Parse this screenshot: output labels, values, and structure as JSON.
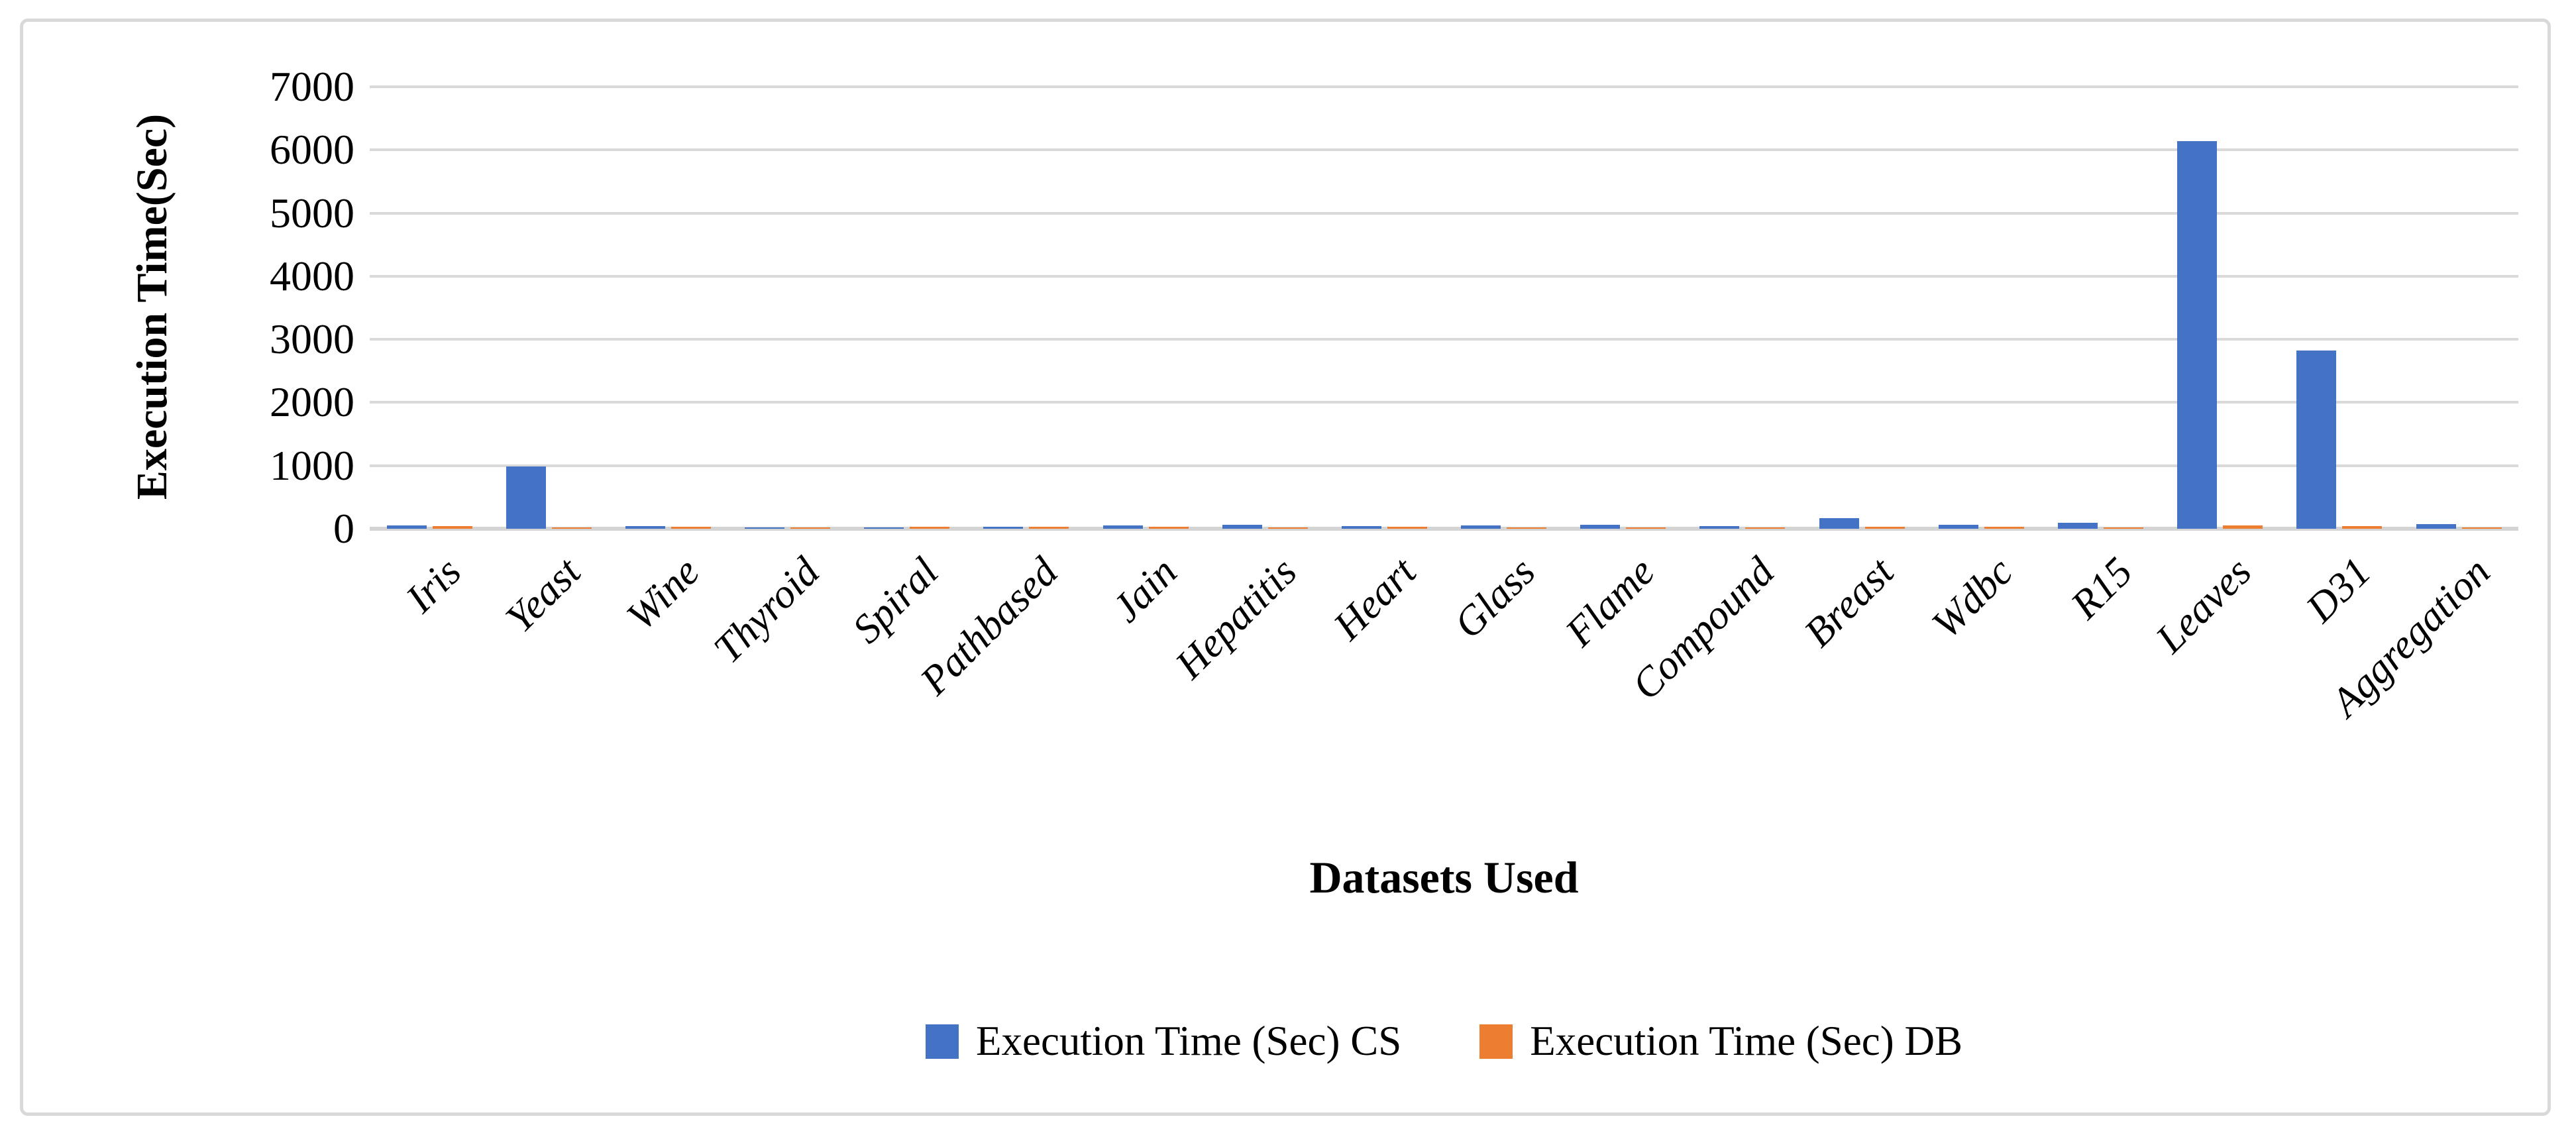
{
  "figure": {
    "background": "#ffffff",
    "border_color": "#d9d9d9"
  },
  "chart_data": {
    "type": "bar",
    "title": "",
    "xlabel": "Datasets Used",
    "ylabel": "Execution Time(Sec)",
    "categories": [
      "Iris",
      "Yeast",
      "Wine",
      "Thyroid",
      "Spiral",
      "Pathbased",
      "Jain",
      "Hepatitis",
      "Heart",
      "Glass",
      "Flame",
      "Compound",
      "Breast",
      "Wdbc",
      "R15",
      "Leaves",
      "D31",
      "Aggregation"
    ],
    "series": [
      {
        "name": "Execution Time (Sec) CS",
        "color": "#4472C4",
        "values": [
          50,
          990,
          40,
          20,
          20,
          30,
          50,
          60,
          45,
          50,
          65,
          40,
          170,
          65,
          90,
          6140,
          2820,
          70
        ]
      },
      {
        "name": "Execution Time (Sec) DB",
        "color": "#ED7D31",
        "values": [
          45,
          20,
          30,
          8,
          30,
          30,
          30,
          18,
          30,
          18,
          18,
          22,
          30,
          30,
          20,
          50,
          40,
          20
        ]
      }
    ],
    "ylim": [
      0,
      7000
    ],
    "yticks": [
      0,
      1000,
      2000,
      3000,
      4000,
      5000,
      6000,
      7000
    ],
    "grid": "horizontal",
    "gridline_color": "#d9d9d9",
    "legend_position": "bottom"
  }
}
